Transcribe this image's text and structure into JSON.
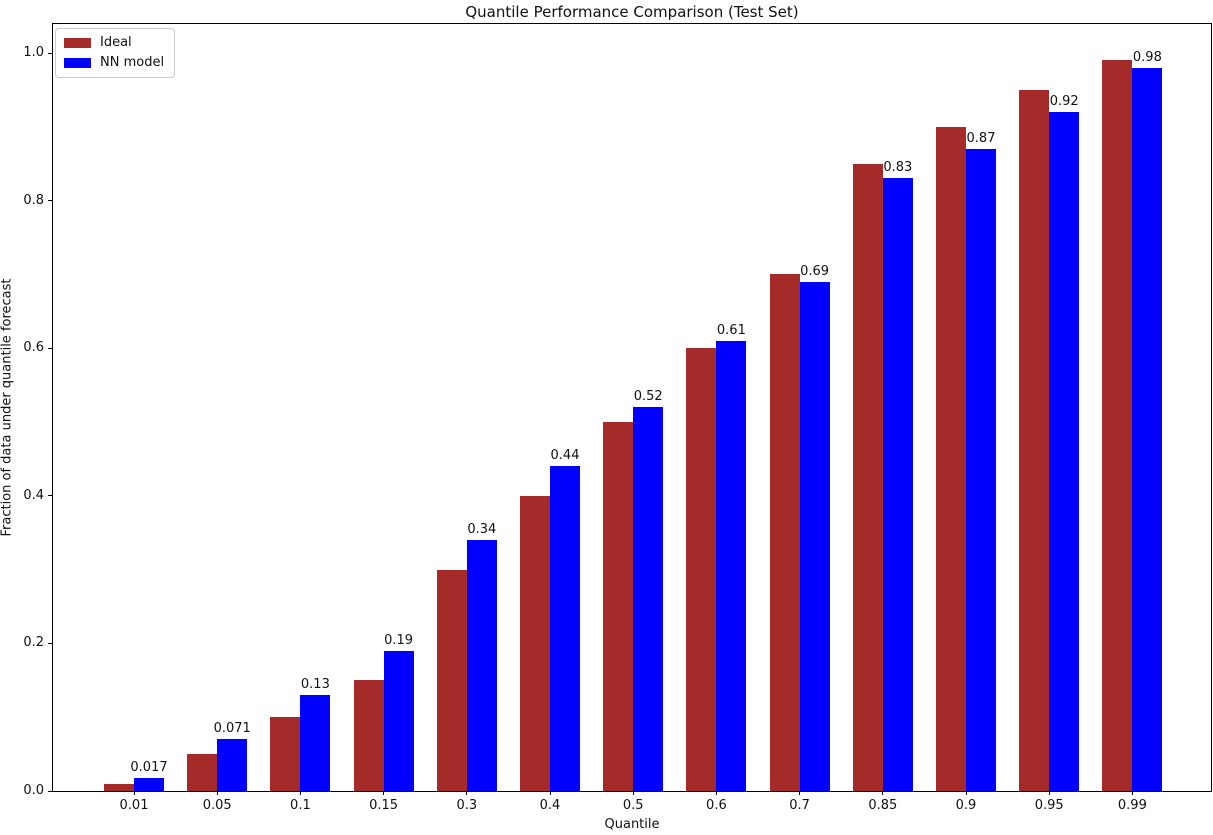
{
  "title": "Quantile Performance Comparison (Test Set)",
  "colors": {
    "ideal": "#a52a2a",
    "nn_model": "#0000ff",
    "axis": "#000000",
    "legend_border": "#cccccc",
    "background": "#ffffff"
  },
  "chart_data": {
    "type": "bar",
    "title": "Quantile Performance Comparison (Test Set)",
    "xlabel": "Quantile",
    "ylabel": "Fraction of data under quantile forecast",
    "categories": [
      "0.01",
      "0.05",
      "0.1",
      "0.15",
      "0.3",
      "0.4",
      "0.5",
      "0.6",
      "0.7",
      "0.85",
      "0.9",
      "0.95",
      "0.99"
    ],
    "series": [
      {
        "name": "Ideal",
        "color": "#a52a2a",
        "values": [
          0.01,
          0.05,
          0.1,
          0.15,
          0.3,
          0.4,
          0.5,
          0.6,
          0.7,
          0.85,
          0.9,
          0.95,
          0.99
        ]
      },
      {
        "name": "NN model",
        "color": "#0000ff",
        "values": [
          0.017,
          0.071,
          0.13,
          0.19,
          0.34,
          0.44,
          0.52,
          0.61,
          0.69,
          0.83,
          0.87,
          0.92,
          0.98
        ],
        "data_labels": [
          "0.017",
          "0.071",
          "0.13",
          "0.19",
          "0.34",
          "0.44",
          "0.52",
          "0.61",
          "0.69",
          "0.83",
          "0.87",
          "0.92",
          "0.98"
        ]
      }
    ],
    "ylim": [
      0.0,
      1.04
    ],
    "yticks": [
      0.0,
      0.2,
      0.4,
      0.6,
      0.8,
      1.0
    ],
    "ytick_labels": [
      "0.0",
      "0.2",
      "0.4",
      "0.6",
      "0.8",
      "1.0"
    ],
    "grid": false,
    "legend_position": "upper left"
  }
}
